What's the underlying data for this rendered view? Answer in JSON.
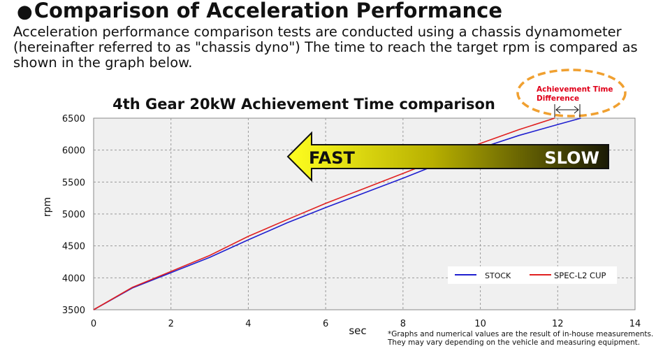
{
  "heading": {
    "bullet": "●",
    "title": "Comparison of Acceleration Performance"
  },
  "intro": "Acceleration performance comparison tests are conducted using a chassis dynamometer (hereinafter referred to as \"chassis dyno\") The time to reach the target rpm is compared as shown in the graph below.",
  "arrow": {
    "fast_label": "FAST",
    "slow_label": "SLOW"
  },
  "annotation": {
    "line1": "Achievement Time",
    "line2": "Difference"
  },
  "footnote": "*Graphs and numerical values are the result of in-house measurements.\nThey may vary depending on the vehicle and measuring equipment.",
  "colors": {
    "stock": "#1f1fd0",
    "spec": "#e02020",
    "annotation_text": "#e0001a",
    "ellipse": "#f0a030"
  },
  "chart_data": {
    "type": "line",
    "title": "4th Gear 20kW Achievement Time comparison",
    "xlabel": "sec",
    "ylabel": "rpm",
    "xlim": [
      0,
      14
    ],
    "ylim": [
      3500,
      6500
    ],
    "xticks": [
      "0",
      "2",
      "4",
      "6",
      "8",
      "10",
      "12",
      "14"
    ],
    "yticks": [
      "3500",
      "4000",
      "4500",
      "5000",
      "5500",
      "6000",
      "6500"
    ],
    "grid": true,
    "legend_position": "bottom-right",
    "series": [
      {
        "name": "STOCK",
        "x": [
          0,
          1,
          2,
          3,
          4,
          5,
          6,
          7,
          8,
          9,
          10,
          11,
          12,
          12.6
        ],
        "y": [
          3500,
          3840,
          4080,
          4320,
          4595,
          4860,
          5100,
          5330,
          5560,
          5800,
          6030,
          6230,
          6400,
          6500
        ]
      },
      {
        "name": "SPEC-L2 CUP",
        "x": [
          0,
          1,
          2,
          3,
          4,
          5,
          6,
          7,
          8,
          9,
          10,
          11,
          11.92
        ],
        "y": [
          3500,
          3850,
          4100,
          4350,
          4650,
          4910,
          5165,
          5400,
          5635,
          5870,
          6105,
          6320,
          6500
        ]
      }
    ]
  }
}
